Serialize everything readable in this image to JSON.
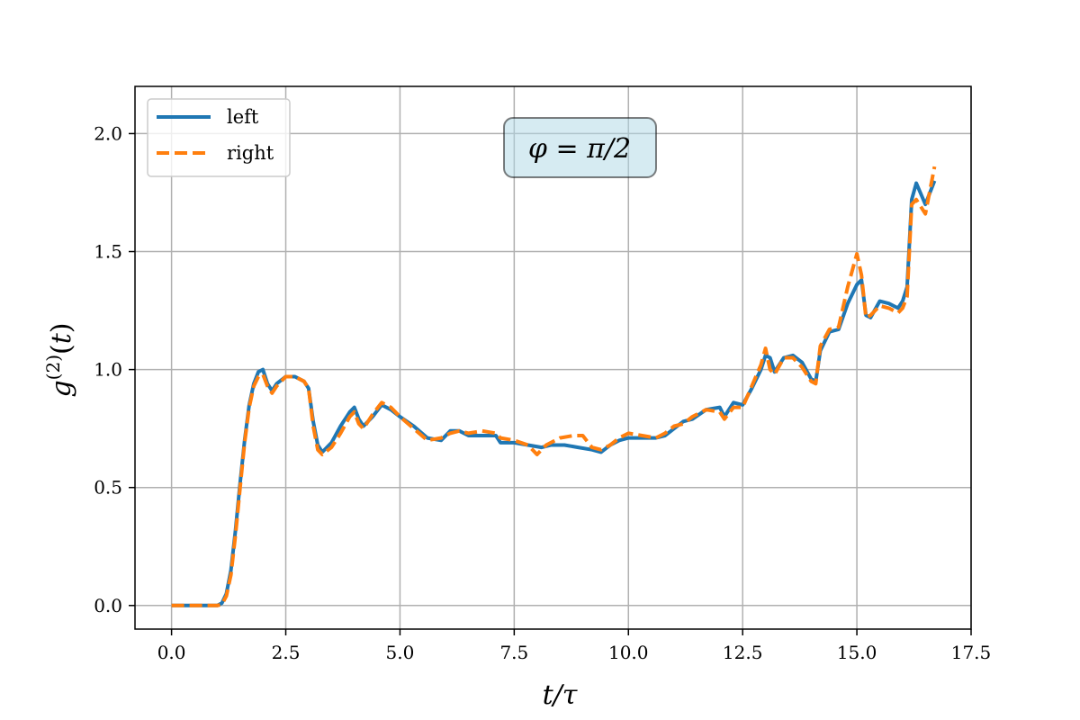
{
  "chart_data": {
    "type": "line",
    "title": "",
    "xlabel": "t/τ",
    "ylabel": "g(2)(t)",
    "xlim": [
      -0.8,
      17.5
    ],
    "ylim": [
      -0.1,
      2.2
    ],
    "xticks": [
      "0.0",
      "2.5",
      "5.0",
      "7.5",
      "10.0",
      "12.5",
      "15.0",
      "17.5"
    ],
    "yticks": [
      "0.0",
      "0.5",
      "1.0",
      "1.5",
      "2.0"
    ],
    "grid": true,
    "legend": "top-left",
    "annotation": "φ = π/2",
    "series": [
      {
        "name": "left",
        "color": "#1f77b4",
        "style": "solid",
        "points": [
          [
            0,
            0
          ],
          [
            0.5,
            0
          ],
          [
            1.0,
            0
          ],
          [
            1.1,
            0.01
          ],
          [
            1.2,
            0.05
          ],
          [
            1.3,
            0.15
          ],
          [
            1.4,
            0.32
          ],
          [
            1.5,
            0.52
          ],
          [
            1.6,
            0.7
          ],
          [
            1.7,
            0.85
          ],
          [
            1.8,
            0.94
          ],
          [
            1.9,
            0.99
          ],
          [
            2.0,
            1.0
          ],
          [
            2.1,
            0.94
          ],
          [
            2.2,
            0.91
          ],
          [
            2.3,
            0.94
          ],
          [
            2.5,
            0.97
          ],
          [
            2.7,
            0.97
          ],
          [
            2.9,
            0.95
          ],
          [
            3.0,
            0.92
          ],
          [
            3.1,
            0.78
          ],
          [
            3.2,
            0.68
          ],
          [
            3.3,
            0.65
          ],
          [
            3.5,
            0.69
          ],
          [
            3.7,
            0.76
          ],
          [
            3.9,
            0.82
          ],
          [
            4.0,
            0.84
          ],
          [
            4.1,
            0.79
          ],
          [
            4.2,
            0.76
          ],
          [
            4.4,
            0.8
          ],
          [
            4.6,
            0.85
          ],
          [
            4.8,
            0.83
          ],
          [
            5.0,
            0.8
          ],
          [
            5.3,
            0.76
          ],
          [
            5.6,
            0.71
          ],
          [
            5.9,
            0.7
          ],
          [
            6.1,
            0.74
          ],
          [
            6.3,
            0.74
          ],
          [
            6.5,
            0.72
          ],
          [
            6.8,
            0.72
          ],
          [
            7.1,
            0.72
          ],
          [
            7.2,
            0.69
          ],
          [
            7.5,
            0.69
          ],
          [
            7.8,
            0.68
          ],
          [
            8.1,
            0.67
          ],
          [
            8.3,
            0.68
          ],
          [
            8.6,
            0.68
          ],
          [
            8.9,
            0.67
          ],
          [
            9.2,
            0.66
          ],
          [
            9.4,
            0.65
          ],
          [
            9.6,
            0.68
          ],
          [
            9.8,
            0.7
          ],
          [
            10.0,
            0.71
          ],
          [
            10.3,
            0.71
          ],
          [
            10.6,
            0.71
          ],
          [
            10.8,
            0.72
          ],
          [
            11.0,
            0.75
          ],
          [
            11.2,
            0.78
          ],
          [
            11.4,
            0.79
          ],
          [
            11.7,
            0.83
          ],
          [
            12.0,
            0.84
          ],
          [
            12.1,
            0.8
          ],
          [
            12.3,
            0.86
          ],
          [
            12.5,
            0.85
          ],
          [
            12.7,
            0.92
          ],
          [
            12.9,
            1.0
          ],
          [
            13.0,
            1.06
          ],
          [
            13.1,
            1.05
          ],
          [
            13.2,
            0.99
          ],
          [
            13.4,
            1.05
          ],
          [
            13.6,
            1.06
          ],
          [
            13.8,
            1.03
          ],
          [
            14.0,
            0.96
          ],
          [
            14.1,
            0.95
          ],
          [
            14.2,
            1.08
          ],
          [
            14.4,
            1.16
          ],
          [
            14.6,
            1.17
          ],
          [
            14.8,
            1.28
          ],
          [
            15.0,
            1.36
          ],
          [
            15.1,
            1.38
          ],
          [
            15.2,
            1.23
          ],
          [
            15.3,
            1.22
          ],
          [
            15.5,
            1.29
          ],
          [
            15.7,
            1.28
          ],
          [
            15.9,
            1.26
          ],
          [
            16.0,
            1.29
          ],
          [
            16.1,
            1.35
          ],
          [
            16.2,
            1.72
          ],
          [
            16.3,
            1.79
          ],
          [
            16.5,
            1.7
          ],
          [
            16.7,
            1.8
          ]
        ]
      },
      {
        "name": "right",
        "color": "#ff7f0e",
        "style": "dashed",
        "points": [
          [
            0,
            0
          ],
          [
            0.5,
            0
          ],
          [
            1.0,
            0
          ],
          [
            1.1,
            0.005
          ],
          [
            1.2,
            0.04
          ],
          [
            1.3,
            0.13
          ],
          [
            1.4,
            0.3
          ],
          [
            1.5,
            0.5
          ],
          [
            1.6,
            0.69
          ],
          [
            1.7,
            0.84
          ],
          [
            1.8,
            0.93
          ],
          [
            1.9,
            0.97
          ],
          [
            2.0,
            0.98
          ],
          [
            2.1,
            0.93
          ],
          [
            2.2,
            0.9
          ],
          [
            2.3,
            0.93
          ],
          [
            2.5,
            0.97
          ],
          [
            2.7,
            0.97
          ],
          [
            2.9,
            0.95
          ],
          [
            3.0,
            0.92
          ],
          [
            3.1,
            0.76
          ],
          [
            3.2,
            0.66
          ],
          [
            3.3,
            0.64
          ],
          [
            3.5,
            0.67
          ],
          [
            3.7,
            0.73
          ],
          [
            3.9,
            0.8
          ],
          [
            4.0,
            0.82
          ],
          [
            4.1,
            0.77
          ],
          [
            4.2,
            0.75
          ],
          [
            4.4,
            0.81
          ],
          [
            4.6,
            0.86
          ],
          [
            4.8,
            0.84
          ],
          [
            5.0,
            0.8
          ],
          [
            5.3,
            0.75
          ],
          [
            5.6,
            0.7
          ],
          [
            5.9,
            0.71
          ],
          [
            6.1,
            0.73
          ],
          [
            6.3,
            0.74
          ],
          [
            6.5,
            0.73
          ],
          [
            6.8,
            0.74
          ],
          [
            7.1,
            0.73
          ],
          [
            7.2,
            0.71
          ],
          [
            7.5,
            0.7
          ],
          [
            7.8,
            0.68
          ],
          [
            8.0,
            0.64
          ],
          [
            8.2,
            0.68
          ],
          [
            8.5,
            0.71
          ],
          [
            8.8,
            0.72
          ],
          [
            9.0,
            0.72
          ],
          [
            9.2,
            0.67
          ],
          [
            9.4,
            0.66
          ],
          [
            9.6,
            0.68
          ],
          [
            9.8,
            0.71
          ],
          [
            10.0,
            0.73
          ],
          [
            10.3,
            0.72
          ],
          [
            10.6,
            0.71
          ],
          [
            10.8,
            0.73
          ],
          [
            11.0,
            0.76
          ],
          [
            11.2,
            0.77
          ],
          [
            11.4,
            0.8
          ],
          [
            11.7,
            0.83
          ],
          [
            12.0,
            0.82
          ],
          [
            12.1,
            0.79
          ],
          [
            12.3,
            0.84
          ],
          [
            12.5,
            0.84
          ],
          [
            12.7,
            0.93
          ],
          [
            12.9,
            1.02
          ],
          [
            13.0,
            1.09
          ],
          [
            13.1,
            1.0
          ],
          [
            13.2,
            0.98
          ],
          [
            13.4,
            1.05
          ],
          [
            13.6,
            1.05
          ],
          [
            13.8,
            1.01
          ],
          [
            14.0,
            0.95
          ],
          [
            14.1,
            0.94
          ],
          [
            14.2,
            1.1
          ],
          [
            14.4,
            1.17
          ],
          [
            14.6,
            1.18
          ],
          [
            14.8,
            1.35
          ],
          [
            15.0,
            1.49
          ],
          [
            15.1,
            1.4
          ],
          [
            15.2,
            1.22
          ],
          [
            15.3,
            1.23
          ],
          [
            15.5,
            1.27
          ],
          [
            15.7,
            1.26
          ],
          [
            15.9,
            1.24
          ],
          [
            16.0,
            1.26
          ],
          [
            16.1,
            1.31
          ],
          [
            16.2,
            1.7
          ],
          [
            16.3,
            1.72
          ],
          [
            16.5,
            1.66
          ],
          [
            16.7,
            1.86
          ]
        ]
      }
    ]
  }
}
